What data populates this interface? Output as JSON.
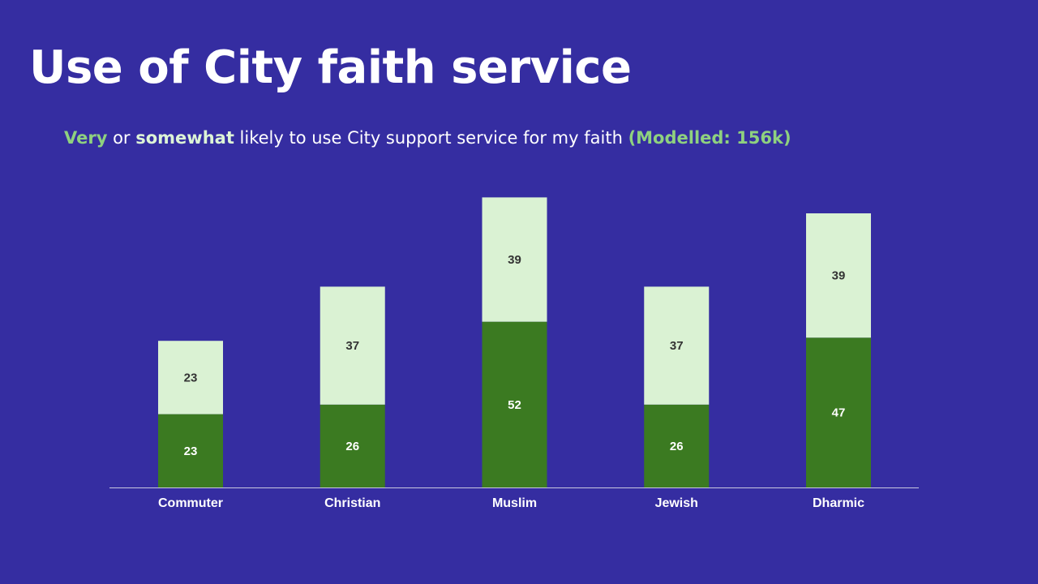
{
  "slide": {
    "title": "Use of City faith service",
    "subtitle": {
      "very": "Very",
      "or": " or ",
      "somewhat": "somewhat",
      "middle": " likely to use City support service for my faith ",
      "modelled": "(Modelled: 156k)"
    }
  },
  "colors": {
    "background": "#352DA1",
    "very": "#3B7A21",
    "somewhat": "#DAF2D3",
    "very_label": "#FFFFFF",
    "somewhat_label": "#333333",
    "axis": "#C8C8E0"
  },
  "chart_data": {
    "type": "bar",
    "stacked": true,
    "categories": [
      "Commuter",
      "Christian",
      "Muslim",
      "Jewish",
      "Dharmic"
    ],
    "series": [
      {
        "name": "Very likely",
        "values": [
          23,
          26,
          52,
          26,
          47
        ]
      },
      {
        "name": "Somewhat likely",
        "values": [
          23,
          37,
          39,
          37,
          39
        ]
      }
    ],
    "ylim": [
      0,
      100
    ],
    "grid": false,
    "legend": "none"
  }
}
